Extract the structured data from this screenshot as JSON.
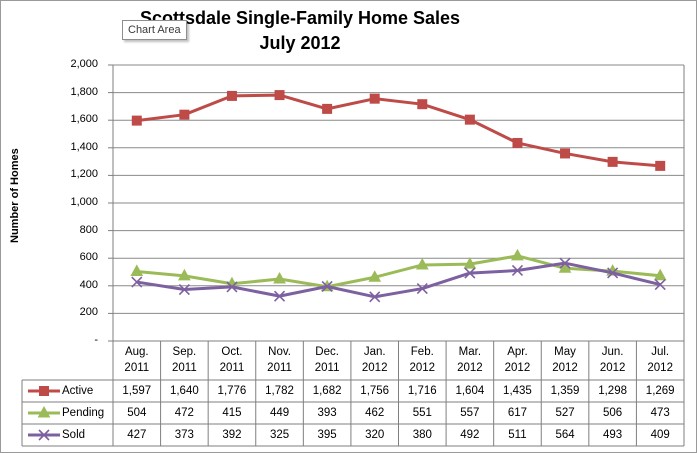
{
  "chart_data": {
    "type": "line",
    "title": "Scottsdale Single-Family Home Sales",
    "subtitle": "July 2012",
    "xlabel": "",
    "ylabel": "Number of Homes",
    "ylim": [
      0,
      2000
    ],
    "yticks": [
      "-",
      "200",
      "400",
      "600",
      "800",
      "1,000",
      "1,200",
      "1,400",
      "1,600",
      "1,800",
      "2,000"
    ],
    "categories": [
      [
        "Aug.",
        "2011"
      ],
      [
        "Sep.",
        "2011"
      ],
      [
        "Oct.",
        "2011"
      ],
      [
        "Nov.",
        "2011"
      ],
      [
        "Dec.",
        "2011"
      ],
      [
        "Jan.",
        "2012"
      ],
      [
        "Feb.",
        "2012"
      ],
      [
        "Mar.",
        "2012"
      ],
      [
        "Apr.",
        "2012"
      ],
      [
        "May",
        "2012"
      ],
      [
        "Jun.",
        "2012"
      ],
      [
        "Jul.",
        "2012"
      ]
    ],
    "series": [
      {
        "name": "Active",
        "color": "#be4b48",
        "marker": "square",
        "values": [
          1597,
          1640,
          1776,
          1782,
          1682,
          1756,
          1716,
          1604,
          1435,
          1359,
          1298,
          1269
        ],
        "labels": [
          "1,597",
          "1,640",
          "1,776",
          "1,782",
          "1,682",
          "1,756",
          "1,716",
          "1,604",
          "1,435",
          "1,359",
          "1,298",
          "1,269"
        ]
      },
      {
        "name": "Pending",
        "color": "#9bbb59",
        "marker": "triangle",
        "values": [
          504,
          472,
          415,
          449,
          393,
          462,
          551,
          557,
          617,
          527,
          506,
          473
        ],
        "labels": [
          "504",
          "472",
          "415",
          "449",
          "393",
          "462",
          "551",
          "557",
          "617",
          "527",
          "506",
          "473"
        ]
      },
      {
        "name": "Sold",
        "color": "#7d60a0",
        "marker": "x",
        "values": [
          427,
          373,
          392,
          325,
          395,
          320,
          380,
          492,
          511,
          564,
          493,
          409
        ],
        "labels": [
          "427",
          "373",
          "392",
          "325",
          "395",
          "320",
          "380",
          "492",
          "511",
          "564",
          "493",
          "409"
        ]
      }
    ],
    "grid": true,
    "legend": "data-table"
  },
  "ui": {
    "tooltip": "Chart Area"
  }
}
